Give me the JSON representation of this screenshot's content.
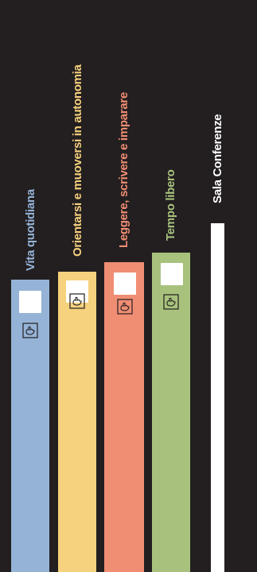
{
  "categories": [
    {
      "label": "Vita quotidiana",
      "color": "#95b3d7",
      "text_color": "#95b3d7",
      "icon": "hand-pointer-icon"
    },
    {
      "label": "Orientarsi e muoversi in autonomia",
      "color": "#f6d17e",
      "text_color": "#f6d17e",
      "icon": "hand-pointer-icon"
    },
    {
      "label": "Leggere, scrivere e imparare",
      "color": "#f08e74",
      "text_color": "#f08e74",
      "icon": "hand-pointer-icon"
    },
    {
      "label": "Tempo libero",
      "color": "#a8c27d",
      "text_color": "#a8c27d",
      "icon": "hand-pointer-icon"
    }
  ],
  "room": {
    "label": "Sala Conferenze",
    "color": "#ffffff"
  }
}
